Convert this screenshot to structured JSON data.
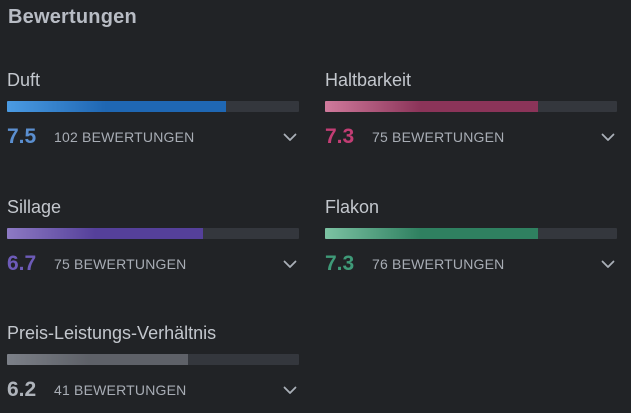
{
  "section": {
    "title": "Bewertungen"
  },
  "ratings": [
    {
      "label": "Duft",
      "score": "7.5",
      "count": "102 BEWERTUNGEN",
      "value": 7.5,
      "max": 10,
      "color": "#1f67b3",
      "color_light": "#4b9be3",
      "score_color": "#5b8fd0"
    },
    {
      "label": "Haltbarkeit",
      "score": "7.3",
      "count": "75 BEWERTUNGEN",
      "value": 7.3,
      "max": 10,
      "color": "#8b3459",
      "color_light": "#d07a9c",
      "score_color": "#c23d74"
    },
    {
      "label": "Sillage",
      "score": "6.7",
      "count": "75 BEWERTUNGEN",
      "value": 6.7,
      "max": 10,
      "color": "#55409a",
      "color_light": "#8d7ac4",
      "score_color": "#6d5bb8"
    },
    {
      "label": "Flakon",
      "score": "7.3",
      "count": "76 BEWERTUNGEN",
      "value": 7.3,
      "max": 10,
      "color": "#2f8060",
      "color_light": "#7cc2a3",
      "score_color": "#3f9a78"
    },
    {
      "label": "Preis-Leistungs-Verhältnis",
      "score": "6.2",
      "count": "41 BEWERTUNGEN",
      "value": 6.2,
      "max": 10,
      "color": "#5e6168",
      "color_light": "#7c8088",
      "score_color": "#aeb3ba"
    }
  ]
}
